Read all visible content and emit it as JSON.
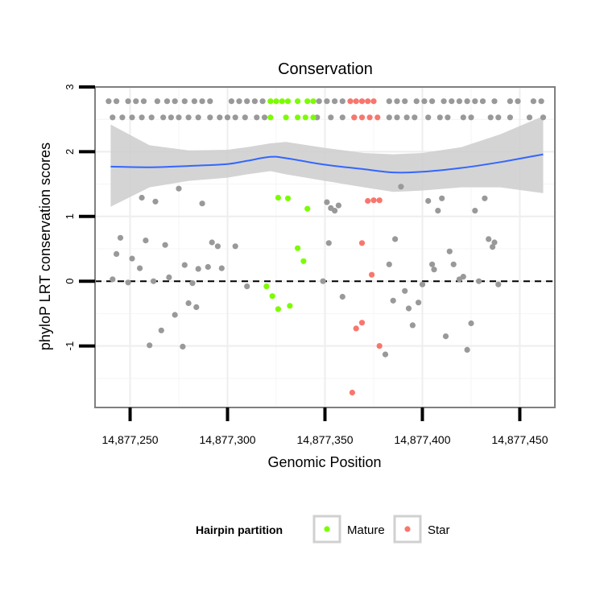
{
  "chart_data": {
    "type": "scatter",
    "title": "Conservation",
    "xlabel": "Genomic Position",
    "ylabel": "phyloP LRT conservation scores",
    "xlim": [
      14877232,
      14877468
    ],
    "ylim": [
      -1.95,
      3.0
    ],
    "x_ticks": [
      {
        "value": 14877250,
        "label": "14,877,250"
      },
      {
        "value": 14877300,
        "label": "14,877,300"
      },
      {
        "value": 14877350,
        "label": "14,877,350"
      },
      {
        "value": 14877400,
        "label": "14,877,400"
      },
      {
        "value": 14877450,
        "label": "14,877,450"
      }
    ],
    "y_ticks": [
      {
        "value": 3,
        "label": "3"
      },
      {
        "value": 2,
        "label": "2"
      },
      {
        "value": 1,
        "label": "1"
      },
      {
        "value": 0,
        "label": "0"
      },
      {
        "value": -1,
        "label": "-1"
      }
    ],
    "grid": true,
    "reference_line": {
      "y": 0,
      "style": "dashed"
    },
    "legend": {
      "title": "Hairpin partition",
      "position": "bottom",
      "entries": [
        {
          "label": "Mature",
          "color": "#7cfc00"
        },
        {
          "label": "Star",
          "color": "#f8766d"
        }
      ]
    },
    "colors": {
      "other": "#999999",
      "mature": "#7cfc00",
      "star": "#f8766d",
      "smooth": "#3366ff",
      "band": "#cccccc",
      "panel_border": "#7f7f7f"
    },
    "series": [
      {
        "name": "",
        "color": "#999999",
        "points": [
          [
            14877239,
            2.78
          ],
          [
            14877243,
            2.78
          ],
          [
            14877249,
            2.78
          ],
          [
            14877253,
            2.78
          ],
          [
            14877257,
            2.78
          ],
          [
            14877264,
            2.78
          ],
          [
            14877269,
            2.78
          ],
          [
            14877273,
            2.78
          ],
          [
            14877278,
            2.78
          ],
          [
            14877283,
            2.78
          ],
          [
            14877287,
            2.78
          ],
          [
            14877291,
            2.78
          ],
          [
            14877302,
            2.78
          ],
          [
            14877306,
            2.78
          ],
          [
            14877310,
            2.78
          ],
          [
            14877314,
            2.78
          ],
          [
            14877318,
            2.78
          ],
          [
            14877347,
            2.78
          ],
          [
            14877351,
            2.78
          ],
          [
            14877355,
            2.78
          ],
          [
            14877359,
            2.78
          ],
          [
            14877383,
            2.78
          ],
          [
            14877387,
            2.78
          ],
          [
            14877391,
            2.78
          ],
          [
            14877397,
            2.78
          ],
          [
            14877401,
            2.78
          ],
          [
            14877405,
            2.78
          ],
          [
            14877411,
            2.78
          ],
          [
            14877415,
            2.78
          ],
          [
            14877419,
            2.78
          ],
          [
            14877423,
            2.78
          ],
          [
            14877427,
            2.78
          ],
          [
            14877431,
            2.78
          ],
          [
            14877437,
            2.78
          ],
          [
            14877445,
            2.78
          ],
          [
            14877449,
            2.78
          ],
          [
            14877457,
            2.78
          ],
          [
            14877461,
            2.78
          ],
          [
            14877241,
            2.53
          ],
          [
            14877246,
            2.53
          ],
          [
            14877251,
            2.53
          ],
          [
            14877256,
            2.53
          ],
          [
            14877261,
            2.53
          ],
          [
            14877267,
            2.53
          ],
          [
            14877271,
            2.53
          ],
          [
            14877275,
            2.53
          ],
          [
            14877280,
            2.53
          ],
          [
            14877285,
            2.53
          ],
          [
            14877291,
            2.53
          ],
          [
            14877296,
            2.53
          ],
          [
            14877300,
            2.53
          ],
          [
            14877304,
            2.53
          ],
          [
            14877309,
            2.53
          ],
          [
            14877315,
            2.53
          ],
          [
            14877319,
            2.53
          ],
          [
            14877346,
            2.53
          ],
          [
            14877353,
            2.53
          ],
          [
            14877359,
            2.53
          ],
          [
            14877365,
            2.53
          ],
          [
            14877383,
            2.53
          ],
          [
            14877387,
            2.53
          ],
          [
            14877392,
            2.53
          ],
          [
            14877396,
            2.53
          ],
          [
            14877403,
            2.53
          ],
          [
            14877409,
            2.53
          ],
          [
            14877413,
            2.53
          ],
          [
            14877421,
            2.53
          ],
          [
            14877425,
            2.53
          ],
          [
            14877435,
            2.53
          ],
          [
            14877439,
            2.53
          ],
          [
            14877445,
            2.53
          ],
          [
            14877455,
            2.53
          ],
          [
            14877462,
            2.53
          ],
          [
            14877241,
            0.03
          ],
          [
            14877243,
            0.42
          ],
          [
            14877245,
            0.67
          ],
          [
            14877249,
            -0.02
          ],
          [
            14877251,
            0.35
          ],
          [
            14877255,
            0.2
          ],
          [
            14877256,
            1.29
          ],
          [
            14877258,
            0.63
          ],
          [
            14877260,
            -0.99
          ],
          [
            14877262,
            0.0
          ],
          [
            14877263,
            1.23
          ],
          [
            14877266,
            -0.76
          ],
          [
            14877268,
            0.56
          ],
          [
            14877270,
            0.06
          ],
          [
            14877273,
            -0.52
          ],
          [
            14877275,
            1.43
          ],
          [
            14877277,
            -1.01
          ],
          [
            14877278,
            0.25
          ],
          [
            14877280,
            -0.34
          ],
          [
            14877282,
            -0.03
          ],
          [
            14877284,
            -0.4
          ],
          [
            14877285,
            0.19
          ],
          [
            14877287,
            1.2
          ],
          [
            14877290,
            0.22
          ],
          [
            14877292,
            0.6
          ],
          [
            14877295,
            0.54
          ],
          [
            14877297,
            0.2
          ],
          [
            14877304,
            0.54
          ],
          [
            14877310,
            -0.08
          ],
          [
            14877349,
            0.0
          ],
          [
            14877351,
            1.22
          ],
          [
            14877352,
            0.59
          ],
          [
            14877353,
            1.13
          ],
          [
            14877355,
            1.09
          ],
          [
            14877357,
            1.17
          ],
          [
            14877359,
            -0.24
          ],
          [
            14877381,
            -1.13
          ],
          [
            14877383,
            0.26
          ],
          [
            14877385,
            -0.3
          ],
          [
            14877386,
            0.65
          ],
          [
            14877389,
            1.46
          ],
          [
            14877391,
            -0.15
          ],
          [
            14877393,
            -0.42
          ],
          [
            14877395,
            -0.68
          ],
          [
            14877398,
            -0.33
          ],
          [
            14877400,
            -0.05
          ],
          [
            14877403,
            1.24
          ],
          [
            14877405,
            0.26
          ],
          [
            14877406,
            0.18
          ],
          [
            14877408,
            1.09
          ],
          [
            14877410,
            1.28
          ],
          [
            14877412,
            -0.85
          ],
          [
            14877414,
            0.46
          ],
          [
            14877416,
            0.26
          ],
          [
            14877419,
            0.03
          ],
          [
            14877421,
            0.07
          ],
          [
            14877423,
            -1.06
          ],
          [
            14877425,
            -0.65
          ],
          [
            14877427,
            1.09
          ],
          [
            14877429,
            0.0
          ],
          [
            14877432,
            1.28
          ],
          [
            14877434,
            0.65
          ],
          [
            14877436,
            0.53
          ],
          [
            14877437,
            0.6
          ],
          [
            14877439,
            -0.05
          ]
        ]
      },
      {
        "name": "Mature",
        "color": "#7cfc00",
        "points": [
          [
            14877322,
            2.78
          ],
          [
            14877325,
            2.78
          ],
          [
            14877328,
            2.78
          ],
          [
            14877331,
            2.78
          ],
          [
            14877336,
            2.78
          ],
          [
            14877341,
            2.78
          ],
          [
            14877344,
            2.78
          ],
          [
            14877322,
            2.53
          ],
          [
            14877330,
            2.53
          ],
          [
            14877336,
            2.53
          ],
          [
            14877340,
            2.53
          ],
          [
            14877344,
            2.53
          ],
          [
            14877326,
            1.29
          ],
          [
            14877331,
            1.28
          ],
          [
            14877341,
            1.12
          ],
          [
            14877336,
            0.51
          ],
          [
            14877339,
            0.31
          ],
          [
            14877320,
            -0.08
          ],
          [
            14877323,
            -0.23
          ],
          [
            14877326,
            -0.43
          ],
          [
            14877332,
            -0.38
          ]
        ]
      },
      {
        "name": "Star",
        "color": "#f8766d",
        "points": [
          [
            14877363,
            2.78
          ],
          [
            14877366,
            2.78
          ],
          [
            14877369,
            2.78
          ],
          [
            14877372,
            2.78
          ],
          [
            14877375,
            2.78
          ],
          [
            14877365,
            2.53
          ],
          [
            14877369,
            2.53
          ],
          [
            14877373,
            2.53
          ],
          [
            14877377,
            2.53
          ],
          [
            14877372,
            1.24
          ],
          [
            14877375,
            1.25
          ],
          [
            14877378,
            1.25
          ],
          [
            14877369,
            0.59
          ],
          [
            14877374,
            0.1
          ],
          [
            14877366,
            -0.73
          ],
          [
            14877369,
            -0.64
          ],
          [
            14877378,
            -1.0
          ],
          [
            14877364,
            -1.72
          ]
        ]
      }
    ],
    "smooth": {
      "x": [
        14877240,
        14877260,
        14877280,
        14877300,
        14877310,
        14877322,
        14877330,
        14877350,
        14877370,
        14877385,
        14877400,
        14877420,
        14877440,
        14877462
      ],
      "y": [
        1.77,
        1.76,
        1.78,
        1.81,
        1.86,
        1.92,
        1.9,
        1.8,
        1.73,
        1.68,
        1.69,
        1.75,
        1.84,
        1.96
      ],
      "lower": [
        1.15,
        1.45,
        1.55,
        1.6,
        1.65,
        1.7,
        1.65,
        1.55,
        1.45,
        1.38,
        1.4,
        1.45,
        1.45,
        1.36
      ],
      "upper": [
        2.42,
        2.1,
        2.02,
        2.03,
        2.07,
        2.13,
        2.15,
        2.06,
        1.98,
        1.96,
        1.98,
        2.07,
        2.27,
        2.55
      ]
    }
  }
}
